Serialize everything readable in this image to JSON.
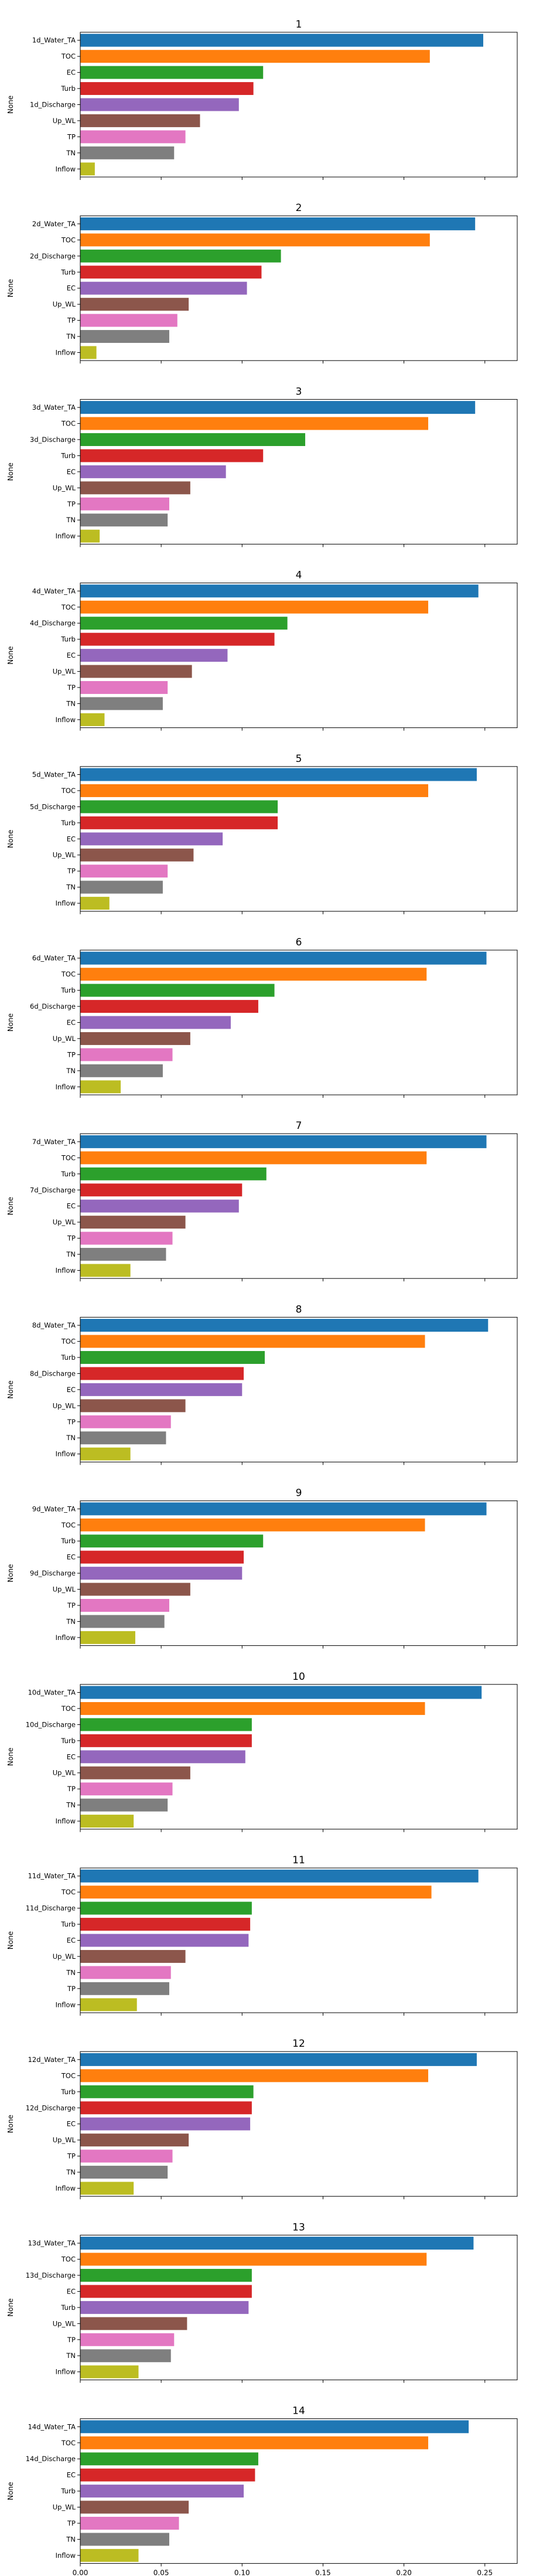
{
  "palette": [
    "#1f77b4",
    "#ff7f0e",
    "#2ca02c",
    "#d62728",
    "#9467bd",
    "#8c564b",
    "#e377c2",
    "#7f7f7f",
    "#bcbd22"
  ],
  "chart_data": [
    {
      "type": "bar",
      "orientation": "horizontal",
      "title": "1",
      "xlabel": "",
      "ylabel": "None",
      "xlim": [
        0,
        0.27
      ],
      "grid": false,
      "categories": [
        "1d_Water_TA",
        "TOC",
        "EC",
        "Turb",
        "1d_Discharge",
        "Up_WL",
        "TP",
        "TN",
        "Inflow"
      ],
      "values": [
        0.249,
        0.216,
        0.113,
        0.107,
        0.098,
        0.074,
        0.065,
        0.058,
        0.009
      ]
    },
    {
      "type": "bar",
      "orientation": "horizontal",
      "title": "2",
      "xlabel": "",
      "ylabel": "None",
      "xlim": [
        0,
        0.27
      ],
      "grid": false,
      "categories": [
        "2d_Water_TA",
        "TOC",
        "2d_Discharge",
        "Turb",
        "EC",
        "Up_WL",
        "TP",
        "TN",
        "Inflow"
      ],
      "values": [
        0.244,
        0.216,
        0.124,
        0.112,
        0.103,
        0.067,
        0.06,
        0.055,
        0.01
      ]
    },
    {
      "type": "bar",
      "orientation": "horizontal",
      "title": "3",
      "xlabel": "",
      "ylabel": "None",
      "xlim": [
        0,
        0.27
      ],
      "grid": false,
      "categories": [
        "3d_Water_TA",
        "TOC",
        "3d_Discharge",
        "Turb",
        "EC",
        "Up_WL",
        "TP",
        "TN",
        "Inflow"
      ],
      "values": [
        0.244,
        0.215,
        0.139,
        0.113,
        0.09,
        0.068,
        0.055,
        0.054,
        0.012
      ]
    },
    {
      "type": "bar",
      "orientation": "horizontal",
      "title": "4",
      "xlabel": "",
      "ylabel": "None",
      "xlim": [
        0,
        0.27
      ],
      "grid": false,
      "categories": [
        "4d_Water_TA",
        "TOC",
        "4d_Discharge",
        "Turb",
        "EC",
        "Up_WL",
        "TP",
        "TN",
        "Inflow"
      ],
      "values": [
        0.246,
        0.215,
        0.128,
        0.12,
        0.091,
        0.069,
        0.054,
        0.051,
        0.015
      ]
    },
    {
      "type": "bar",
      "orientation": "horizontal",
      "title": "5",
      "xlabel": "",
      "ylabel": "None",
      "xlim": [
        0,
        0.27
      ],
      "grid": false,
      "categories": [
        "5d_Water_TA",
        "TOC",
        "5d_Discharge",
        "Turb",
        "EC",
        "Up_WL",
        "TP",
        "TN",
        "Inflow"
      ],
      "values": [
        0.245,
        0.215,
        0.122,
        0.122,
        0.088,
        0.07,
        0.054,
        0.051,
        0.018
      ]
    },
    {
      "type": "bar",
      "orientation": "horizontal",
      "title": "6",
      "xlabel": "",
      "ylabel": "None",
      "xlim": [
        0,
        0.27
      ],
      "grid": false,
      "categories": [
        "6d_Water_TA",
        "TOC",
        "Turb",
        "6d_Discharge",
        "EC",
        "Up_WL",
        "TP",
        "TN",
        "Inflow"
      ],
      "values": [
        0.251,
        0.214,
        0.12,
        0.11,
        0.093,
        0.068,
        0.057,
        0.051,
        0.025
      ]
    },
    {
      "type": "bar",
      "orientation": "horizontal",
      "title": "7",
      "xlabel": "",
      "ylabel": "None",
      "xlim": [
        0,
        0.27
      ],
      "grid": false,
      "categories": [
        "7d_Water_TA",
        "TOC",
        "Turb",
        "7d_Discharge",
        "EC",
        "Up_WL",
        "TP",
        "TN",
        "Inflow"
      ],
      "values": [
        0.251,
        0.214,
        0.115,
        0.1,
        0.098,
        0.065,
        0.057,
        0.053,
        0.031
      ]
    },
    {
      "type": "bar",
      "orientation": "horizontal",
      "title": "8",
      "xlabel": "",
      "ylabel": "None",
      "xlim": [
        0,
        0.27
      ],
      "grid": false,
      "categories": [
        "8d_Water_TA",
        "TOC",
        "Turb",
        "8d_Discharge",
        "EC",
        "Up_WL",
        "TP",
        "TN",
        "Inflow"
      ],
      "values": [
        0.252,
        0.213,
        0.114,
        0.101,
        0.1,
        0.065,
        0.056,
        0.053,
        0.031
      ]
    },
    {
      "type": "bar",
      "orientation": "horizontal",
      "title": "9",
      "xlabel": "",
      "ylabel": "None",
      "xlim": [
        0,
        0.27
      ],
      "grid": false,
      "categories": [
        "9d_Water_TA",
        "TOC",
        "Turb",
        "EC",
        "9d_Discharge",
        "Up_WL",
        "TP",
        "TN",
        "Inflow"
      ],
      "values": [
        0.251,
        0.213,
        0.113,
        0.101,
        0.1,
        0.068,
        0.055,
        0.052,
        0.034
      ]
    },
    {
      "type": "bar",
      "orientation": "horizontal",
      "title": "10",
      "xlabel": "",
      "ylabel": "None",
      "xlim": [
        0,
        0.27
      ],
      "grid": false,
      "categories": [
        "10d_Water_TA",
        "TOC",
        "10d_Discharge",
        "Turb",
        "EC",
        "Up_WL",
        "TP",
        "TN",
        "Inflow"
      ],
      "values": [
        0.248,
        0.213,
        0.106,
        0.106,
        0.102,
        0.068,
        0.057,
        0.054,
        0.033
      ]
    },
    {
      "type": "bar",
      "orientation": "horizontal",
      "title": "11",
      "xlabel": "",
      "ylabel": "None",
      "xlim": [
        0,
        0.27
      ],
      "grid": false,
      "categories": [
        "11d_Water_TA",
        "TOC",
        "11d_Discharge",
        "Turb",
        "EC",
        "Up_WL",
        "TN",
        "TP",
        "Inflow"
      ],
      "values": [
        0.246,
        0.217,
        0.106,
        0.105,
        0.104,
        0.065,
        0.056,
        0.055,
        0.035
      ]
    },
    {
      "type": "bar",
      "orientation": "horizontal",
      "title": "12",
      "xlabel": "",
      "ylabel": "None",
      "xlim": [
        0,
        0.27
      ],
      "grid": false,
      "categories": [
        "12d_Water_TA",
        "TOC",
        "Turb",
        "12d_Discharge",
        "EC",
        "Up_WL",
        "TP",
        "TN",
        "Inflow"
      ],
      "values": [
        0.245,
        0.215,
        0.107,
        0.106,
        0.105,
        0.067,
        0.057,
        0.054,
        0.033
      ]
    },
    {
      "type": "bar",
      "orientation": "horizontal",
      "title": "13",
      "xlabel": "",
      "ylabel": "None",
      "xlim": [
        0,
        0.27
      ],
      "grid": false,
      "categories": [
        "13d_Water_TA",
        "TOC",
        "13d_Discharge",
        "EC",
        "Turb",
        "Up_WL",
        "TP",
        "TN",
        "Inflow"
      ],
      "values": [
        0.243,
        0.214,
        0.106,
        0.106,
        0.104,
        0.066,
        0.058,
        0.056,
        0.036
      ]
    },
    {
      "type": "bar",
      "orientation": "horizontal",
      "title": "14",
      "xlabel": "None",
      "ylabel": "None",
      "xlim": [
        0,
        0.27
      ],
      "grid": false,
      "categories": [
        "14d_Water_TA",
        "TOC",
        "14d_Discharge",
        "EC",
        "Turb",
        "Up_WL",
        "TP",
        "TN",
        "Inflow"
      ],
      "values": [
        0.24,
        0.215,
        0.11,
        0.108,
        0.101,
        0.067,
        0.061,
        0.055,
        0.036
      ],
      "xticks": [
        "0.00",
        "0.05",
        "0.10",
        "0.15",
        "0.20",
        "0.25"
      ]
    }
  ]
}
